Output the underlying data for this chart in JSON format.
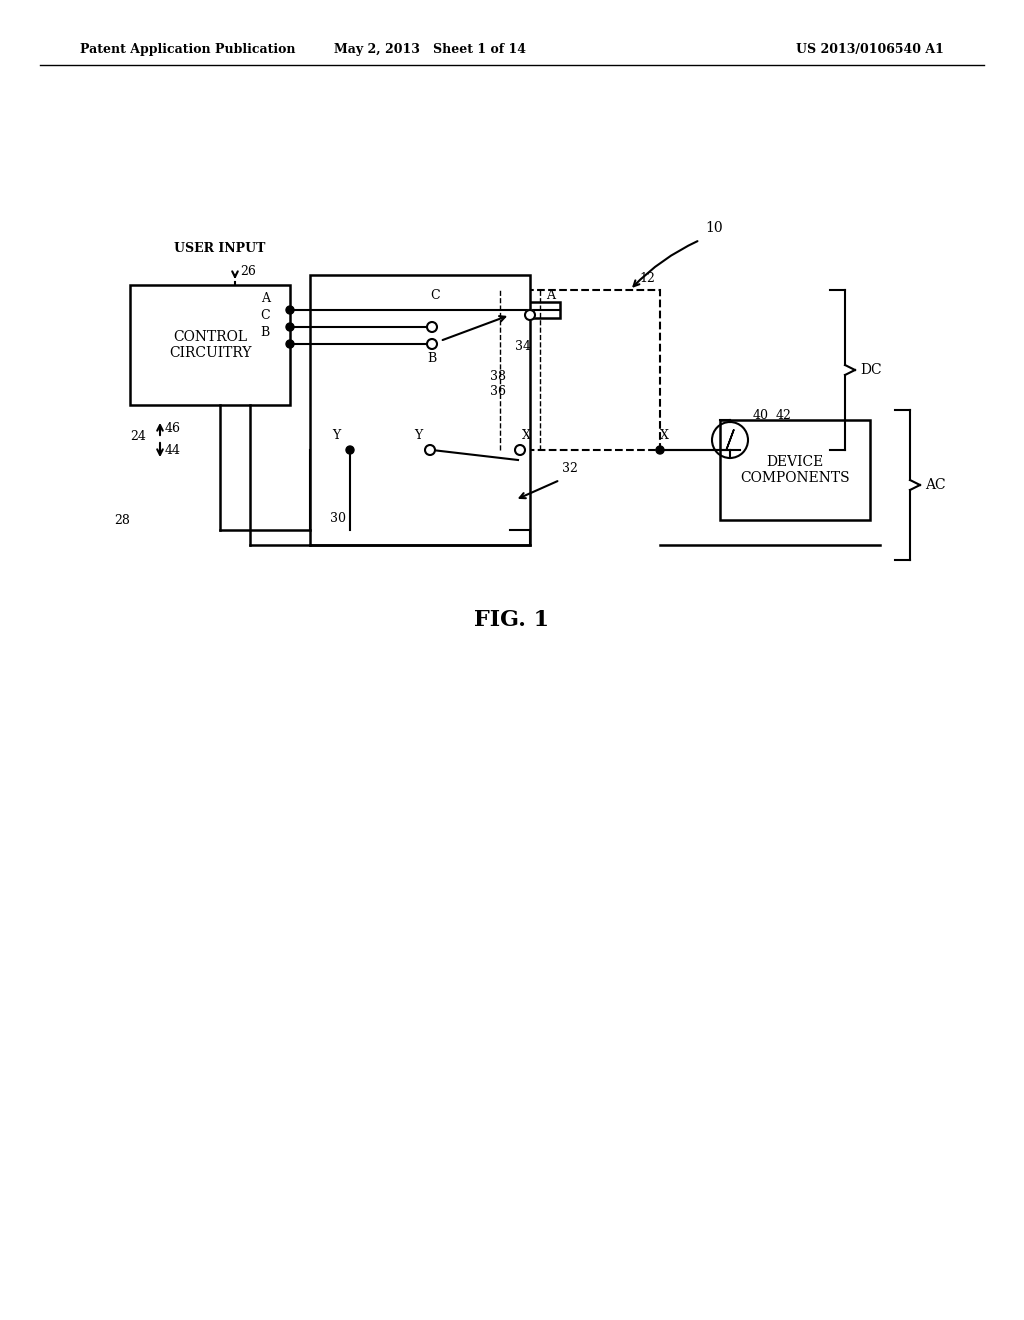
{
  "header_left": "Patent Application Publication",
  "header_center": "May 2, 2013   Sheet 1 of 14",
  "header_right": "US 2013/0106540 A1",
  "fig_label": "FIG. 1",
  "bg_color": "#ffffff",
  "line_color": "#000000",
  "ref_10": "10",
  "ref_12": "12",
  "ref_24": "24",
  "ref_26": "26",
  "ref_28": "28",
  "ref_30": "30",
  "ref_32": "32",
  "ref_34": "34",
  "ref_36": "36",
  "ref_38": "38",
  "ref_40": "40",
  "ref_42": "42",
  "ref_44": "44",
  "ref_46": "46",
  "label_control": "CONTROL\nCIRCUITRY",
  "label_device": "DEVICE\nCOMPONENTS",
  "label_user_input": "USER INPUT",
  "label_dc": "DC",
  "label_ac": "AC"
}
